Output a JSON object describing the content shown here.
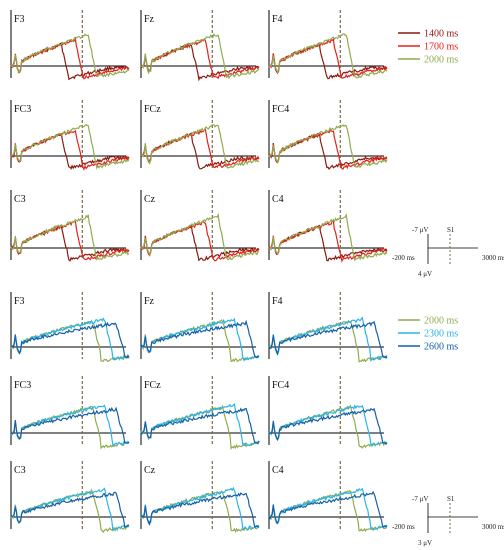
{
  "chart_data": [
    {
      "type": "line",
      "panel_group": "top",
      "electrodes": [
        "F3",
        "Fz",
        "F4",
        "FC3",
        "FCz",
        "FC4",
        "C3",
        "Cz",
        "C4"
      ],
      "series": [
        {
          "name": "1400 ms",
          "color": "#8b1a0e"
        },
        {
          "name": "1700 ms",
          "color": "#e8201b"
        },
        {
          "name": "2000 ms",
          "color": "#8fac4f"
        }
      ],
      "scale_bar": {
        "top_label": "-7 μV",
        "marker_label": "S1",
        "left_label": "-200 ms",
        "right_label": "3000 ms",
        "bottom_label": "4 μV"
      }
    },
    {
      "type": "line",
      "panel_group": "bottom",
      "electrodes": [
        "F3",
        "Fz",
        "F4",
        "FC3",
        "FCz",
        "FC4",
        "C3",
        "Cz",
        "C4"
      ],
      "series": [
        {
          "name": "2000 ms",
          "color": "#8fac4f"
        },
        {
          "name": "2300 ms",
          "color": "#2bb4e8"
        },
        {
          "name": "2600 ms",
          "color": "#1560a8"
        }
      ],
      "scale_bar": {
        "top_label": "-7 μV",
        "marker_label": "S1",
        "left_label": "-200 ms",
        "right_label": "3000 ms",
        "bottom_label": "3 μV"
      }
    }
  ]
}
